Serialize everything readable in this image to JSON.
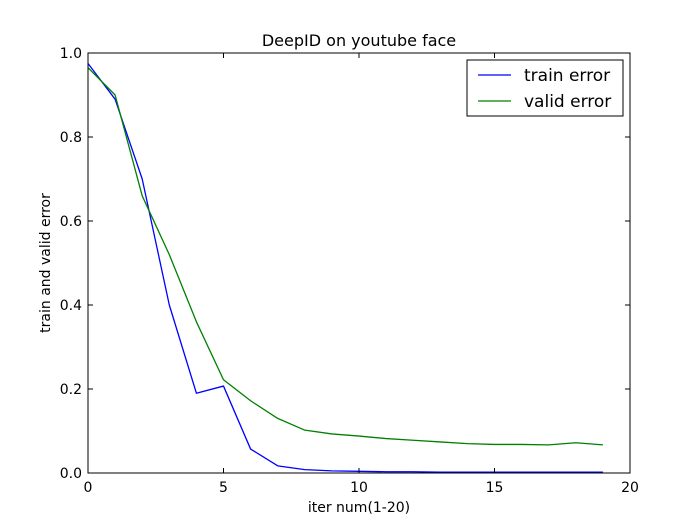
{
  "chart_data": {
    "type": "line",
    "title": "DeepID on youtube face",
    "xlabel": "iter num(1-20)",
    "ylabel": "train and valid error",
    "xlim": [
      0,
      20
    ],
    "ylim": [
      0.0,
      1.0
    ],
    "xticks": [
      0,
      5,
      10,
      15,
      20
    ],
    "xtick_labels": [
      "0",
      "5",
      "10",
      "15",
      "20"
    ],
    "yticks": [
      0.0,
      0.2,
      0.4,
      0.6,
      0.8,
      1.0
    ],
    "ytick_labels": [
      "0.0",
      "0.2",
      "0.4",
      "0.6",
      "0.8",
      "1.0"
    ],
    "grid": false,
    "legend_position": "top-right",
    "x": [
      0,
      1,
      2,
      3,
      4,
      5,
      6,
      7,
      8,
      9,
      10,
      11,
      12,
      13,
      14,
      15,
      16,
      17,
      18,
      19
    ],
    "series": [
      {
        "name": "train error",
        "color": "#0000ff",
        "values": [
          0.975,
          0.89,
          0.7,
          0.4,
          0.19,
          0.207,
          0.057,
          0.017,
          0.008,
          0.005,
          0.004,
          0.003,
          0.003,
          0.002,
          0.002,
          0.002,
          0.002,
          0.002,
          0.002,
          0.002
        ]
      },
      {
        "name": "valid error",
        "color": "#008000",
        "values": [
          0.965,
          0.9,
          0.66,
          0.52,
          0.36,
          0.222,
          0.172,
          0.13,
          0.102,
          0.093,
          0.088,
          0.082,
          0.078,
          0.074,
          0.07,
          0.068,
          0.068,
          0.067,
          0.072,
          0.067
        ]
      }
    ]
  }
}
